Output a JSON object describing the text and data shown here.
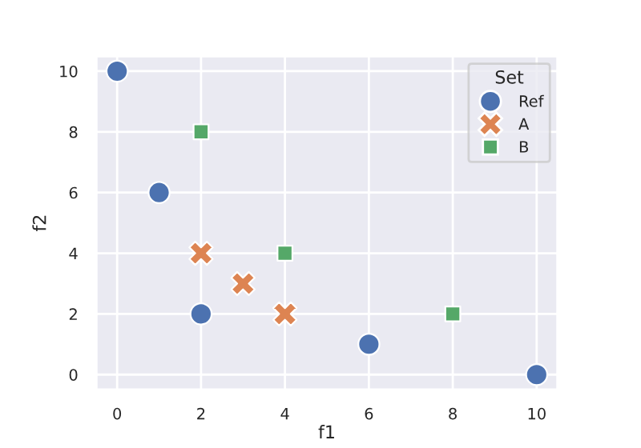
{
  "chart_data": {
    "type": "scatter",
    "xlabel": "f1",
    "ylabel": "f2",
    "legend_title": "Set",
    "legend": "top right",
    "grid": true,
    "xlim": [
      -0.5,
      10.5
    ],
    "ylim": [
      -0.5,
      10.5
    ],
    "xticks": [
      0,
      2,
      4,
      6,
      8,
      10
    ],
    "yticks": [
      0,
      2,
      4,
      6,
      8,
      10
    ],
    "series": [
      {
        "name": "Ref",
        "color": "#4c72b0",
        "marker": "circle",
        "x": [
          0,
          1,
          2,
          6,
          10
        ],
        "values": [
          10,
          6,
          2,
          1,
          0
        ]
      },
      {
        "name": "A",
        "color": "#dd8452",
        "marker": "cross",
        "x": [
          2,
          3,
          4
        ],
        "values": [
          4,
          3,
          2
        ]
      },
      {
        "name": "B",
        "color": "#55a868",
        "marker": "square",
        "x": [
          2,
          4,
          8
        ],
        "values": [
          8,
          4,
          2
        ]
      }
    ]
  }
}
